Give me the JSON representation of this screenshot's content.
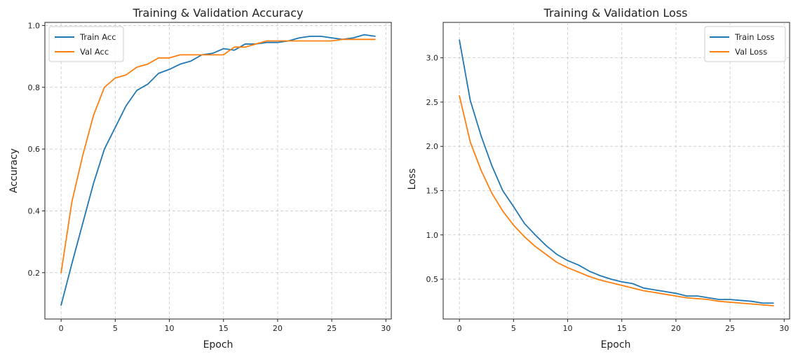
{
  "chart_data": [
    {
      "type": "line",
      "title": "Training & Validation Accuracy",
      "xlabel": "Epoch",
      "ylabel": "Accuracy",
      "xlim": [
        -1.5,
        30.5
      ],
      "ylim": [
        0.05,
        1.01
      ],
      "xticks": [
        0,
        5,
        10,
        15,
        20,
        25,
        30
      ],
      "yticks": [
        0.2,
        0.4,
        0.6,
        0.8,
        1.0
      ],
      "ytick_labels": [
        "0.2",
        "0.4",
        "0.6",
        "0.8",
        "1.0"
      ],
      "grid": true,
      "legend_position": "top-left",
      "x": [
        0,
        1,
        2,
        3,
        4,
        5,
        6,
        7,
        8,
        9,
        10,
        11,
        12,
        13,
        14,
        15,
        16,
        17,
        18,
        19,
        20,
        21,
        22,
        23,
        24,
        25,
        26,
        27,
        28,
        29
      ],
      "series": [
        {
          "name": "Train Acc",
          "color": "#1f77b4",
          "values": [
            0.095,
            0.23,
            0.36,
            0.49,
            0.6,
            0.67,
            0.74,
            0.79,
            0.81,
            0.845,
            0.858,
            0.875,
            0.885,
            0.905,
            0.91,
            0.925,
            0.92,
            0.94,
            0.94,
            0.945,
            0.945,
            0.95,
            0.96,
            0.965,
            0.965,
            0.96,
            0.955,
            0.96,
            0.97,
            0.965
          ]
        },
        {
          "name": "Val Acc",
          "color": "#ff7f0e",
          "values": [
            0.2,
            0.43,
            0.58,
            0.71,
            0.8,
            0.83,
            0.84,
            0.865,
            0.875,
            0.895,
            0.895,
            0.905,
            0.905,
            0.905,
            0.905,
            0.905,
            0.93,
            0.93,
            0.94,
            0.95,
            0.95,
            0.95,
            0.95,
            0.95,
            0.95,
            0.95,
            0.955,
            0.955,
            0.955,
            0.955
          ]
        }
      ]
    },
    {
      "type": "line",
      "title": "Training & Validation Loss",
      "xlabel": "Epoch",
      "ylabel": "Loss",
      "xlim": [
        -1.5,
        30.5
      ],
      "ylim": [
        0.05,
        3.4
      ],
      "xticks": [
        0,
        5,
        10,
        15,
        20,
        25,
        30
      ],
      "yticks": [
        0.5,
        1.0,
        1.5,
        2.0,
        2.5,
        3.0
      ],
      "ytick_labels": [
        "0.5",
        "1.0",
        "1.5",
        "2.0",
        "2.5",
        "3.0"
      ],
      "grid": true,
      "legend_position": "top-right",
      "x": [
        0,
        1,
        2,
        3,
        4,
        5,
        6,
        7,
        8,
        9,
        10,
        11,
        12,
        13,
        14,
        15,
        16,
        17,
        18,
        19,
        20,
        21,
        22,
        23,
        24,
        25,
        26,
        27,
        28,
        29
      ],
      "series": [
        {
          "name": "Train Loss",
          "color": "#1f77b4",
          "values": [
            3.2,
            2.52,
            2.12,
            1.78,
            1.5,
            1.32,
            1.13,
            1.0,
            0.88,
            0.78,
            0.71,
            0.66,
            0.59,
            0.54,
            0.5,
            0.47,
            0.45,
            0.4,
            0.38,
            0.36,
            0.34,
            0.31,
            0.31,
            0.29,
            0.27,
            0.27,
            0.26,
            0.25,
            0.23,
            0.23
          ]
        },
        {
          "name": "Val Loss",
          "color": "#ff7f0e",
          "values": [
            2.57,
            2.05,
            1.73,
            1.47,
            1.27,
            1.11,
            0.98,
            0.87,
            0.78,
            0.69,
            0.63,
            0.58,
            0.53,
            0.49,
            0.46,
            0.43,
            0.4,
            0.37,
            0.35,
            0.33,
            0.31,
            0.29,
            0.28,
            0.27,
            0.25,
            0.24,
            0.23,
            0.22,
            0.21,
            0.2
          ]
        }
      ]
    }
  ]
}
